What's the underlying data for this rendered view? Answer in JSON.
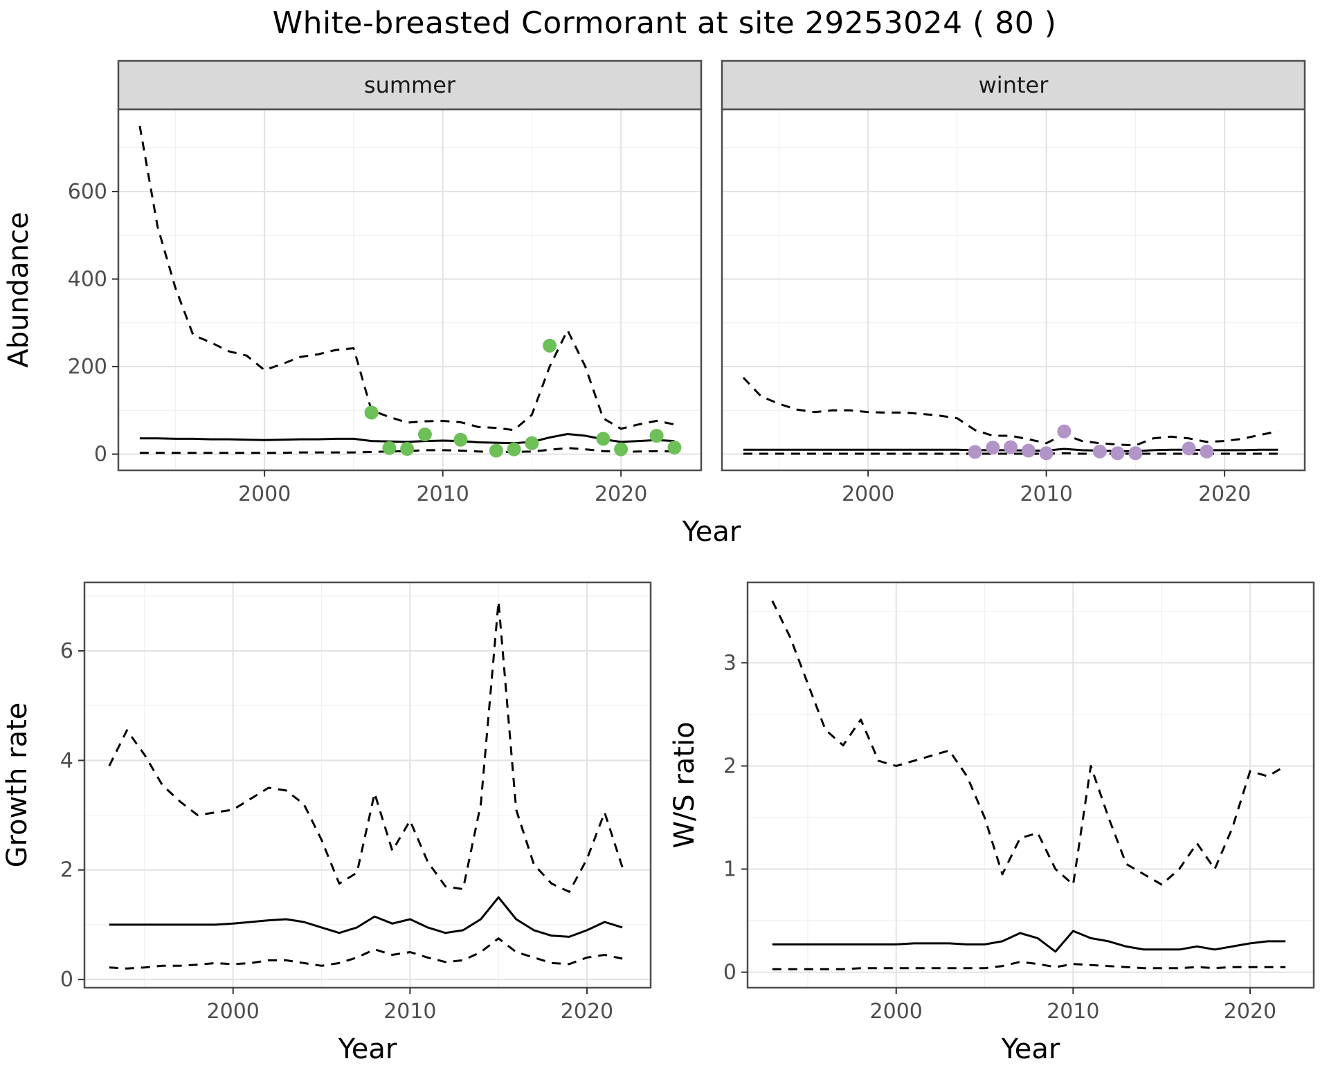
{
  "title": "White-breasted Cormorant at site 29253024 ( 80 )",
  "colors": {
    "summer_point": "#6dbf57",
    "winter_point": "#b294c7",
    "line": "#000000",
    "grid_major": "#e2e2e2",
    "grid_minor": "#f1f1f1",
    "strip_bg": "#d9d9d9",
    "panel_border": "#4d4d4d",
    "tick_label": "#4d4d4d",
    "axis_title": "#000000"
  },
  "chart_data": [
    {
      "key": "summer",
      "type": "line",
      "facet_label": "summer",
      "xlabel": "Year",
      "ylabel": "Abundance",
      "xlim": [
        1991.8,
        2024.5
      ],
      "ylim": [
        -37,
        788
      ],
      "xticks": [
        2000,
        2010,
        2020
      ],
      "yticks": [
        0,
        200,
        400,
        600
      ],
      "xminor": [
        1995,
        2005,
        2015
      ],
      "yminor": [
        100,
        300,
        500,
        700
      ],
      "series": [
        {
          "name": "upper-95ci",
          "style": "dashed",
          "x": [
            1993,
            1994,
            1995,
            1996,
            1997,
            1998,
            1999,
            2000,
            2001,
            2002,
            2003,
            2004,
            2005,
            2006,
            2007,
            2008,
            2009,
            2010,
            2011,
            2012,
            2013,
            2014,
            2015,
            2016,
            2017,
            2018,
            2019,
            2020,
            2021,
            2022,
            2023
          ],
          "y": [
            750,
            520,
            380,
            272,
            255,
            235,
            225,
            192,
            206,
            222,
            228,
            238,
            242,
            100,
            85,
            72,
            75,
            76,
            73,
            62,
            60,
            55,
            90,
            200,
            283,
            200,
            82,
            58,
            68,
            76,
            68
          ]
        },
        {
          "name": "median",
          "style": "solid",
          "x": [
            1993,
            1994,
            1995,
            1996,
            1997,
            1998,
            1999,
            2000,
            2001,
            2002,
            2003,
            2004,
            2005,
            2006,
            2007,
            2008,
            2009,
            2010,
            2011,
            2012,
            2013,
            2014,
            2015,
            2016,
            2017,
            2018,
            2019,
            2020,
            2021,
            2022,
            2023
          ],
          "y": [
            36,
            36,
            35,
            35,
            34,
            34,
            33,
            32,
            33,
            34,
            34,
            35,
            35,
            30,
            29,
            28,
            30,
            31,
            30,
            27,
            26,
            25,
            28,
            38,
            46,
            42,
            34,
            28,
            30,
            32,
            30
          ]
        },
        {
          "name": "lower-95ci",
          "style": "dashed",
          "x": [
            1993,
            1994,
            1995,
            1996,
            1997,
            1998,
            1999,
            2000,
            2001,
            2002,
            2003,
            2004,
            2005,
            2006,
            2007,
            2008,
            2009,
            2010,
            2011,
            2012,
            2013,
            2014,
            2015,
            2016,
            2017,
            2018,
            2019,
            2020,
            2021,
            2022,
            2023
          ],
          "y": [
            3,
            3,
            3,
            3,
            3,
            3,
            3,
            3,
            3,
            4,
            4,
            4,
            4,
            5,
            6,
            7,
            9,
            9,
            8,
            6,
            5,
            5,
            6,
            10,
            14,
            11,
            7,
            5,
            6,
            7,
            6
          ]
        }
      ],
      "points": {
        "name": "observed-counts",
        "color_key": "summer_point",
        "x": [
          2006,
          2007,
          2008,
          2009,
          2011,
          2013,
          2014,
          2015,
          2016,
          2019,
          2020,
          2022,
          2023
        ],
        "y": [
          95,
          14,
          12,
          45,
          33,
          8,
          11,
          25,
          248,
          35,
          11,
          42,
          15
        ]
      }
    },
    {
      "key": "winter",
      "type": "line",
      "facet_label": "winter",
      "xlabel": "Year",
      "ylabel": "",
      "xlim": [
        1991.8,
        2024.5
      ],
      "ylim": [
        -37,
        788
      ],
      "xticks": [
        2000,
        2010,
        2020
      ],
      "yticks": [
        0,
        200,
        400,
        600
      ],
      "xminor": [
        1995,
        2005,
        2015
      ],
      "yminor": [
        100,
        300,
        500,
        700
      ],
      "series": [
        {
          "name": "upper-95ci",
          "style": "dashed",
          "x": [
            1993,
            1994,
            1995,
            1996,
            1997,
            1998,
            1999,
            2000,
            2001,
            2002,
            2003,
            2004,
            2005,
            2006,
            2007,
            2008,
            2009,
            2010,
            2011,
            2012,
            2013,
            2014,
            2015,
            2016,
            2017,
            2018,
            2019,
            2020,
            2021,
            2022,
            2023
          ],
          "y": [
            175,
            132,
            115,
            102,
            96,
            100,
            100,
            96,
            95,
            95,
            92,
            88,
            82,
            55,
            42,
            42,
            34,
            25,
            45,
            30,
            25,
            22,
            20,
            36,
            40,
            36,
            28,
            30,
            35,
            44,
            52
          ]
        },
        {
          "name": "median",
          "style": "solid",
          "x": [
            1993,
            1994,
            1995,
            1996,
            1997,
            1998,
            1999,
            2000,
            2001,
            2002,
            2003,
            2004,
            2005,
            2006,
            2007,
            2008,
            2009,
            2010,
            2011,
            2012,
            2013,
            2014,
            2015,
            2016,
            2017,
            2018,
            2019,
            2020,
            2021,
            2022,
            2023
          ],
          "y": [
            10,
            10,
            10,
            10,
            10,
            10,
            10,
            10,
            10,
            10,
            10,
            10,
            10,
            9,
            9,
            9,
            8,
            8,
            12,
            9,
            8,
            7,
            7,
            9,
            10,
            10,
            9,
            9,
            9,
            10,
            10
          ]
        },
        {
          "name": "lower-95ci",
          "style": "dashed",
          "x": [
            1993,
            1994,
            1995,
            1996,
            1997,
            1998,
            1999,
            2000,
            2001,
            2002,
            2003,
            2004,
            2005,
            2006,
            2007,
            2008,
            2009,
            2010,
            2011,
            2012,
            2013,
            2014,
            2015,
            2016,
            2017,
            2018,
            2019,
            2020,
            2021,
            2022,
            2023
          ],
          "y": [
            1,
            1,
            1,
            1,
            1,
            1,
            1,
            1,
            1,
            1,
            1,
            1,
            1,
            1,
            1,
            1,
            1,
            1,
            2,
            1,
            1,
            1,
            1,
            1,
            1,
            1,
            1,
            1,
            1,
            1,
            1
          ]
        }
      ],
      "points": {
        "name": "observed-counts",
        "color_key": "winter_point",
        "x": [
          2006,
          2007,
          2008,
          2009,
          2010,
          2011,
          2013,
          2014,
          2015,
          2018,
          2019
        ],
        "y": [
          5,
          15,
          16,
          8,
          2,
          52,
          6,
          2,
          2,
          13,
          6
        ]
      }
    },
    {
      "key": "growth",
      "type": "line",
      "facet_label": "",
      "xlabel": "Year",
      "ylabel": "Growth rate",
      "xlim": [
        1991.6,
        2023.6
      ],
      "ylim": [
        -0.15,
        7.25
      ],
      "xticks": [
        2000,
        2010,
        2020
      ],
      "yticks": [
        0,
        2,
        4,
        6
      ],
      "xminor": [
        1995,
        2005,
        2015
      ],
      "yminor": [
        1,
        3,
        5,
        7
      ],
      "series": [
        {
          "name": "upper-95ci",
          "style": "dashed",
          "x": [
            1993,
            1994,
            1995,
            1996,
            1997,
            1998,
            1999,
            2000,
            2001,
            2002,
            2003,
            2004,
            2005,
            2006,
            2007,
            2008,
            2009,
            2010,
            2011,
            2012,
            2013,
            2014,
            2015,
            2016,
            2017,
            2018,
            2019,
            2020,
            2021,
            2022
          ],
          "y": [
            3.9,
            4.55,
            4.1,
            3.55,
            3.25,
            3.0,
            3.05,
            3.1,
            3.3,
            3.5,
            3.45,
            3.2,
            2.55,
            1.75,
            1.95,
            3.4,
            2.35,
            2.9,
            2.15,
            1.7,
            1.65,
            3.2,
            6.9,
            3.1,
            2.1,
            1.75,
            1.6,
            2.2,
            3.05,
            2.05
          ]
        },
        {
          "name": "median",
          "style": "solid",
          "x": [
            1993,
            1994,
            1995,
            1996,
            1997,
            1998,
            1999,
            2000,
            2001,
            2002,
            2003,
            2004,
            2005,
            2006,
            2007,
            2008,
            2009,
            2010,
            2011,
            2012,
            2013,
            2014,
            2015,
            2016,
            2017,
            2018,
            2019,
            2020,
            2021,
            2022
          ],
          "y": [
            1.0,
            1.0,
            1.0,
            1.0,
            1.0,
            1.0,
            1.0,
            1.02,
            1.05,
            1.08,
            1.1,
            1.05,
            0.95,
            0.85,
            0.95,
            1.15,
            1.02,
            1.1,
            0.95,
            0.85,
            0.9,
            1.1,
            1.5,
            1.1,
            0.9,
            0.8,
            0.78,
            0.9,
            1.05,
            0.95
          ]
        },
        {
          "name": "lower-95ci",
          "style": "dashed",
          "x": [
            1993,
            1994,
            1995,
            1996,
            1997,
            1998,
            1999,
            2000,
            2001,
            2002,
            2003,
            2004,
            2005,
            2006,
            2007,
            2008,
            2009,
            2010,
            2011,
            2012,
            2013,
            2014,
            2015,
            2016,
            2017,
            2018,
            2019,
            2020,
            2021,
            2022
          ],
          "y": [
            0.22,
            0.2,
            0.22,
            0.25,
            0.25,
            0.27,
            0.3,
            0.28,
            0.3,
            0.35,
            0.35,
            0.3,
            0.25,
            0.3,
            0.4,
            0.55,
            0.45,
            0.5,
            0.4,
            0.32,
            0.35,
            0.5,
            0.75,
            0.5,
            0.4,
            0.3,
            0.28,
            0.4,
            0.45,
            0.38
          ]
        }
      ],
      "points": null
    },
    {
      "key": "ratio",
      "type": "line",
      "facet_label": "",
      "xlabel": "Year",
      "ylabel": "W/S ratio",
      "xlim": [
        1991.6,
        2023.6
      ],
      "ylim": [
        -0.15,
        3.78
      ],
      "xticks": [
        2000,
        2010,
        2020
      ],
      "yticks": [
        0,
        1,
        2,
        3
      ],
      "xminor": [
        1995,
        2005,
        2015
      ],
      "yminor": [
        0.5,
        1.5,
        2.5,
        3.5
      ],
      "series": [
        {
          "name": "upper-95ci",
          "style": "dashed",
          "x": [
            1993,
            1994,
            1995,
            1996,
            1997,
            1998,
            1999,
            2000,
            2001,
            2002,
            2003,
            2004,
            2005,
            2006,
            2007,
            2008,
            2009,
            2010,
            2011,
            2012,
            2013,
            2014,
            2015,
            2016,
            2017,
            2018,
            2019,
            2020,
            2021,
            2022
          ],
          "y": [
            3.6,
            3.25,
            2.8,
            2.35,
            2.2,
            2.45,
            2.05,
            2.0,
            2.05,
            2.1,
            2.15,
            1.9,
            1.5,
            0.95,
            1.3,
            1.35,
            1.0,
            0.85,
            2.0,
            1.5,
            1.05,
            0.95,
            0.85,
            1.0,
            1.25,
            1.0,
            1.4,
            1.95,
            1.9,
            2.0
          ]
        },
        {
          "name": "median",
          "style": "solid",
          "x": [
            1993,
            1994,
            1995,
            1996,
            1997,
            1998,
            1999,
            2000,
            2001,
            2002,
            2003,
            2004,
            2005,
            2006,
            2007,
            2008,
            2009,
            2010,
            2011,
            2012,
            2013,
            2014,
            2015,
            2016,
            2017,
            2018,
            2019,
            2020,
            2021,
            2022
          ],
          "y": [
            0.27,
            0.27,
            0.27,
            0.27,
            0.27,
            0.27,
            0.27,
            0.27,
            0.28,
            0.28,
            0.28,
            0.27,
            0.27,
            0.3,
            0.38,
            0.33,
            0.2,
            0.4,
            0.33,
            0.3,
            0.25,
            0.22,
            0.22,
            0.22,
            0.25,
            0.22,
            0.25,
            0.28,
            0.3,
            0.3
          ]
        },
        {
          "name": "lower-95ci",
          "style": "dashed",
          "x": [
            1993,
            1994,
            1995,
            1996,
            1997,
            1998,
            1999,
            2000,
            2001,
            2002,
            2003,
            2004,
            2005,
            2006,
            2007,
            2008,
            2009,
            2010,
            2011,
            2012,
            2013,
            2014,
            2015,
            2016,
            2017,
            2018,
            2019,
            2020,
            2021,
            2022
          ],
          "y": [
            0.03,
            0.03,
            0.03,
            0.03,
            0.03,
            0.04,
            0.04,
            0.04,
            0.04,
            0.04,
            0.04,
            0.04,
            0.04,
            0.06,
            0.1,
            0.08,
            0.05,
            0.08,
            0.07,
            0.06,
            0.05,
            0.04,
            0.04,
            0.04,
            0.05,
            0.04,
            0.05,
            0.05,
            0.05,
            0.05
          ]
        }
      ],
      "points": null
    }
  ]
}
